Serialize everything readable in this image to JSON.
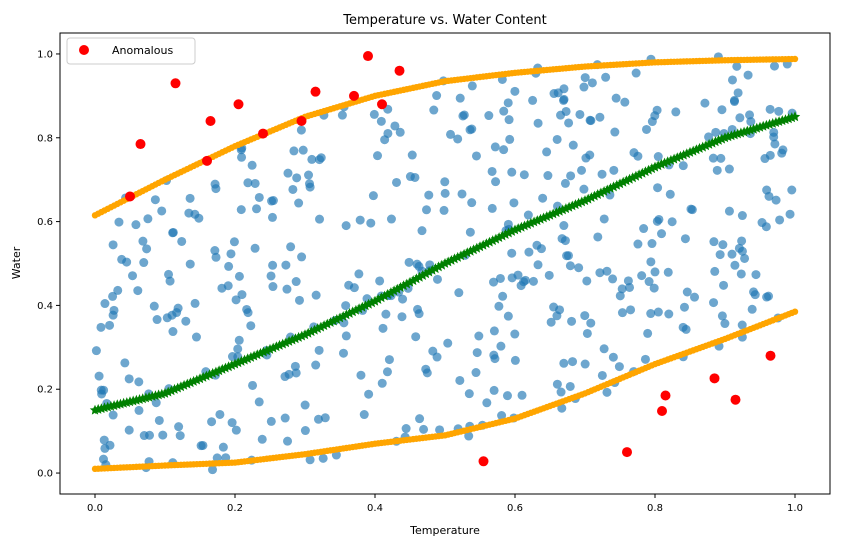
{
  "chart_data": {
    "type": "scatter",
    "title": "Temperature vs. Water Content",
    "xlabel": "Temperature",
    "ylabel": "Water",
    "xlim": [
      -0.05,
      1.05
    ],
    "ylim": [
      -0.05,
      1.05
    ],
    "xticks": [
      0.0,
      0.2,
      0.4,
      0.6,
      0.8,
      1.0
    ],
    "yticks": [
      0.0,
      0.2,
      0.4,
      0.6,
      0.8,
      1.0
    ],
    "xtick_labels": [
      "0.0",
      "0.2",
      "0.4",
      "0.6",
      "0.8",
      "1.0"
    ],
    "ytick_labels": [
      "0.0",
      "0.2",
      "0.4",
      "0.6",
      "0.8",
      "1.0"
    ],
    "grid": false,
    "legend": {
      "placement": "top-left",
      "entries": [
        {
          "label": "Anomalous",
          "color": "#ff0000",
          "marker": "circle"
        }
      ]
    },
    "series": [
      {
        "name": "Anomalous",
        "color": "#ff0000",
        "points": [
          [
            0.05,
            0.66
          ],
          [
            0.065,
            0.785
          ],
          [
            0.115,
            0.93
          ],
          [
            0.16,
            0.745
          ],
          [
            0.165,
            0.84
          ],
          [
            0.205,
            0.88
          ],
          [
            0.24,
            0.81
          ],
          [
            0.295,
            0.84
          ],
          [
            0.315,
            0.91
          ],
          [
            0.37,
            0.9
          ],
          [
            0.39,
            0.995
          ],
          [
            0.41,
            0.88
          ],
          [
            0.435,
            0.96
          ],
          [
            0.555,
            0.028
          ],
          [
            0.76,
            0.05
          ],
          [
            0.81,
            0.148
          ],
          [
            0.815,
            0.185
          ],
          [
            0.885,
            0.226
          ],
          [
            0.915,
            0.175
          ],
          [
            0.965,
            0.28
          ]
        ]
      },
      {
        "color": "#1f77b4",
        "alpha": 0.65,
        "count": 500,
        "distribution": "Temperature uniform on [0, 1]; Water uniform between the two orange bounds"
      },
      {
        "color": "#008000",
        "marker": "star",
        "curve": [
          [
            0.0,
            0.15
          ],
          [
            0.1,
            0.19
          ],
          [
            0.2,
            0.26
          ],
          [
            0.3,
            0.33
          ],
          [
            0.4,
            0.41
          ],
          [
            0.5,
            0.5
          ],
          [
            0.6,
            0.58
          ],
          [
            0.7,
            0.65
          ],
          [
            0.8,
            0.73
          ],
          [
            0.9,
            0.8
          ],
          [
            1.0,
            0.85
          ]
        ]
      },
      {
        "color": "#ffa500",
        "marker": "circle",
        "curve": [
          [
            0.0,
            0.615
          ],
          [
            0.1,
            0.7
          ],
          [
            0.2,
            0.78
          ],
          [
            0.3,
            0.85
          ],
          [
            0.4,
            0.9
          ],
          [
            0.5,
            0.935
          ],
          [
            0.6,
            0.955
          ],
          [
            0.7,
            0.97
          ],
          [
            0.8,
            0.98
          ],
          [
            0.9,
            0.985
          ],
          [
            1.0,
            0.988
          ]
        ]
      },
      {
        "color": "#ffa500",
        "marker": "circle",
        "curve": [
          [
            0.0,
            0.01
          ],
          [
            0.1,
            0.018
          ],
          [
            0.2,
            0.025
          ],
          [
            0.3,
            0.045
          ],
          [
            0.4,
            0.07
          ],
          [
            0.5,
            0.09
          ],
          [
            0.6,
            0.13
          ],
          [
            0.7,
            0.19
          ],
          [
            0.8,
            0.26
          ],
          [
            0.9,
            0.32
          ],
          [
            1.0,
            0.385
          ]
        ]
      }
    ]
  }
}
